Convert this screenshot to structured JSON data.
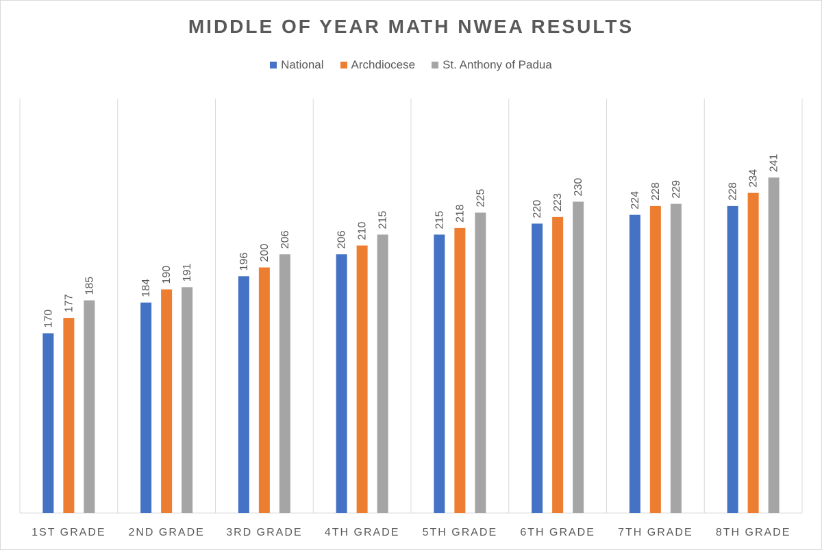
{
  "chart_data": {
    "type": "bar",
    "title": "MIDDLE OF YEAR MATH NWEA RESULTS",
    "xlabel": "",
    "ylabel": "",
    "categories": [
      "1ST GRADE",
      "2ND GRADE",
      "3RD GRADE",
      "4TH GRADE",
      "5TH GRADE",
      "6TH GRADE",
      "7TH GRADE",
      "8TH GRADE"
    ],
    "series": [
      {
        "name": "National",
        "color": "#4472c4",
        "values": [
          170,
          184,
          196,
          206,
          215,
          220,
          224,
          228
        ]
      },
      {
        "name": "Archdiocese",
        "color": "#ed7d31",
        "values": [
          177,
          190,
          200,
          210,
          218,
          223,
          228,
          234
        ]
      },
      {
        "name": "St. Anthony of Padua",
        "color": "#a5a5a5",
        "values": [
          185,
          191,
          206,
          215,
          225,
          230,
          229,
          241
        ]
      }
    ],
    "ylim": [
      88,
      277
    ],
    "grid": "vertical category separators",
    "legend_position": "top",
    "data_labels": "rotated above bars"
  }
}
